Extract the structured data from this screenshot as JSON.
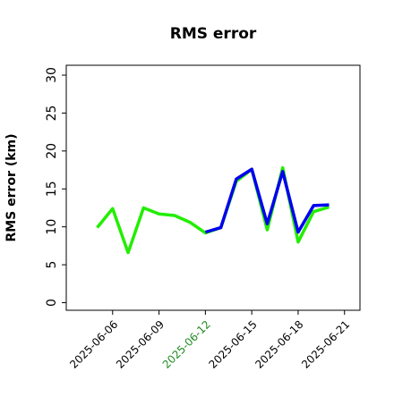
{
  "chart_data": {
    "type": "line",
    "title": "RMS error",
    "y_label": "RMS error (km)",
    "x": [
      "2025-06-05",
      "2025-06-06",
      "2025-06-07",
      "2025-06-08",
      "2025-06-09",
      "2025-06-10",
      "2025-06-11",
      "2025-06-12",
      "2025-06-13",
      "2025-06-14",
      "2025-06-15",
      "2025-06-16",
      "2025-06-17",
      "2025-06-18",
      "2025-06-19",
      "2025-06-20"
    ],
    "series": [
      {
        "name": "green",
        "color": "#22ee00",
        "values": [
          9.9,
          12.4,
          6.6,
          12.5,
          11.7,
          11.5,
          10.6,
          9.2,
          9.9,
          16.0,
          17.6,
          9.6,
          17.8,
          8.0,
          12.0,
          12.6
        ]
      },
      {
        "name": "blue",
        "color": "#0000ee",
        "values": [
          null,
          null,
          null,
          null,
          null,
          null,
          null,
          9.3,
          9.9,
          16.3,
          17.6,
          10.4,
          17.3,
          9.3,
          12.8,
          12.9
        ]
      }
    ],
    "xlim": [
      "2025-06-03",
      "2025-06-22"
    ],
    "xticks": [
      "2025-06-06",
      "2025-06-09",
      "2025-06-12",
      "2025-06-15",
      "2025-06-18",
      "2025-06-21"
    ],
    "xtick_colors": [
      "#000000",
      "#000000",
      "#228b22",
      "#000000",
      "#000000",
      "#000000"
    ],
    "ylim": [
      -1,
      31.3
    ],
    "yticks": [
      0,
      5,
      10,
      15,
      20,
      25,
      30
    ],
    "grid": false
  }
}
